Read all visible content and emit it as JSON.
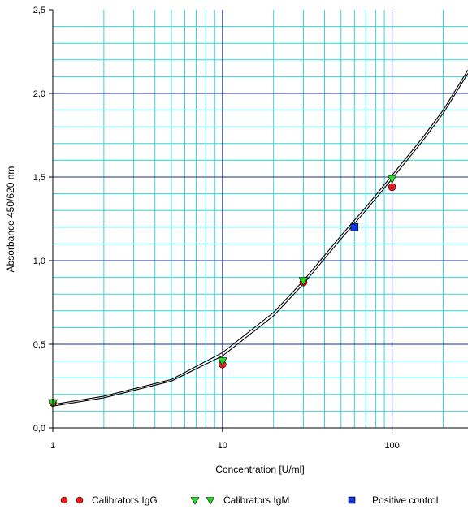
{
  "chart_data": {
    "type": "scatter",
    "xlabel": "Concentration [U/ml]",
    "ylabel": "Absorbance 450/620 nm",
    "x_scale": "log",
    "xlim": [
      1,
      280
    ],
    "ylim": [
      0,
      2.5
    ],
    "x_ticks": [
      {
        "value": 1,
        "label": "1"
      },
      {
        "value": 10,
        "label": "10"
      },
      {
        "value": 100,
        "label": "100"
      }
    ],
    "y_ticks": [
      {
        "value": 0,
        "label": "0,0"
      },
      {
        "value": 0.5,
        "label": "0,5"
      },
      {
        "value": 1.0,
        "label": "1,0"
      },
      {
        "value": 1.5,
        "label": "1,5"
      },
      {
        "value": 2.0,
        "label": "2,0"
      },
      {
        "value": 2.5,
        "label": "2,5"
      }
    ],
    "grid": true,
    "colors": {
      "minor_grid": "#33d6d6",
      "major_grid": "#1c2c8c",
      "curve": "#000000"
    },
    "series": [
      {
        "name": "Calibrators IgG",
        "marker": "circle",
        "color": "#ee1c1c",
        "points": [
          {
            "x": 1,
            "y": 0.15
          },
          {
            "x": 10,
            "y": 0.38
          },
          {
            "x": 30,
            "y": 0.87
          },
          {
            "x": 100,
            "y": 1.44
          }
        ]
      },
      {
        "name": "Calibrators IgM",
        "marker": "triangle-down",
        "color": "#22dd22",
        "points": [
          {
            "x": 1,
            "y": 0.15
          },
          {
            "x": 10,
            "y": 0.4
          },
          {
            "x": 30,
            "y": 0.88
          },
          {
            "x": 100,
            "y": 1.49
          }
        ]
      },
      {
        "name": "Positive control",
        "marker": "square",
        "color": "#1030d0",
        "points": [
          {
            "x": 60,
            "y": 1.2
          }
        ]
      }
    ],
    "curves": [
      {
        "points": [
          [
            1,
            0.13
          ],
          [
            2,
            0.18
          ],
          [
            5,
            0.28
          ],
          [
            10,
            0.43
          ],
          [
            20,
            0.67
          ],
          [
            30,
            0.86
          ],
          [
            50,
            1.13
          ],
          [
            70,
            1.3
          ],
          [
            100,
            1.49
          ],
          [
            150,
            1.71
          ],
          [
            200,
            1.88
          ],
          [
            280,
            2.12
          ]
        ]
      },
      {
        "points": [
          [
            1,
            0.14
          ],
          [
            2,
            0.19
          ],
          [
            5,
            0.29
          ],
          [
            10,
            0.45
          ],
          [
            20,
            0.69
          ],
          [
            30,
            0.88
          ],
          [
            50,
            1.15
          ],
          [
            70,
            1.32
          ],
          [
            100,
            1.51
          ],
          [
            150,
            1.73
          ],
          [
            200,
            1.9
          ],
          [
            280,
            2.14
          ]
        ]
      }
    ],
    "legend": {
      "position": "bottom",
      "items": [
        {
          "label": "Calibrators IgG",
          "marker": "circle",
          "color": "#ee1c1c",
          "count": 2
        },
        {
          "label": "Calibrators IgM",
          "marker": "triangle-down",
          "color": "#22dd22",
          "count": 2
        },
        {
          "label": "Positive control",
          "marker": "square",
          "color": "#1030d0",
          "count": 1
        }
      ]
    }
  }
}
